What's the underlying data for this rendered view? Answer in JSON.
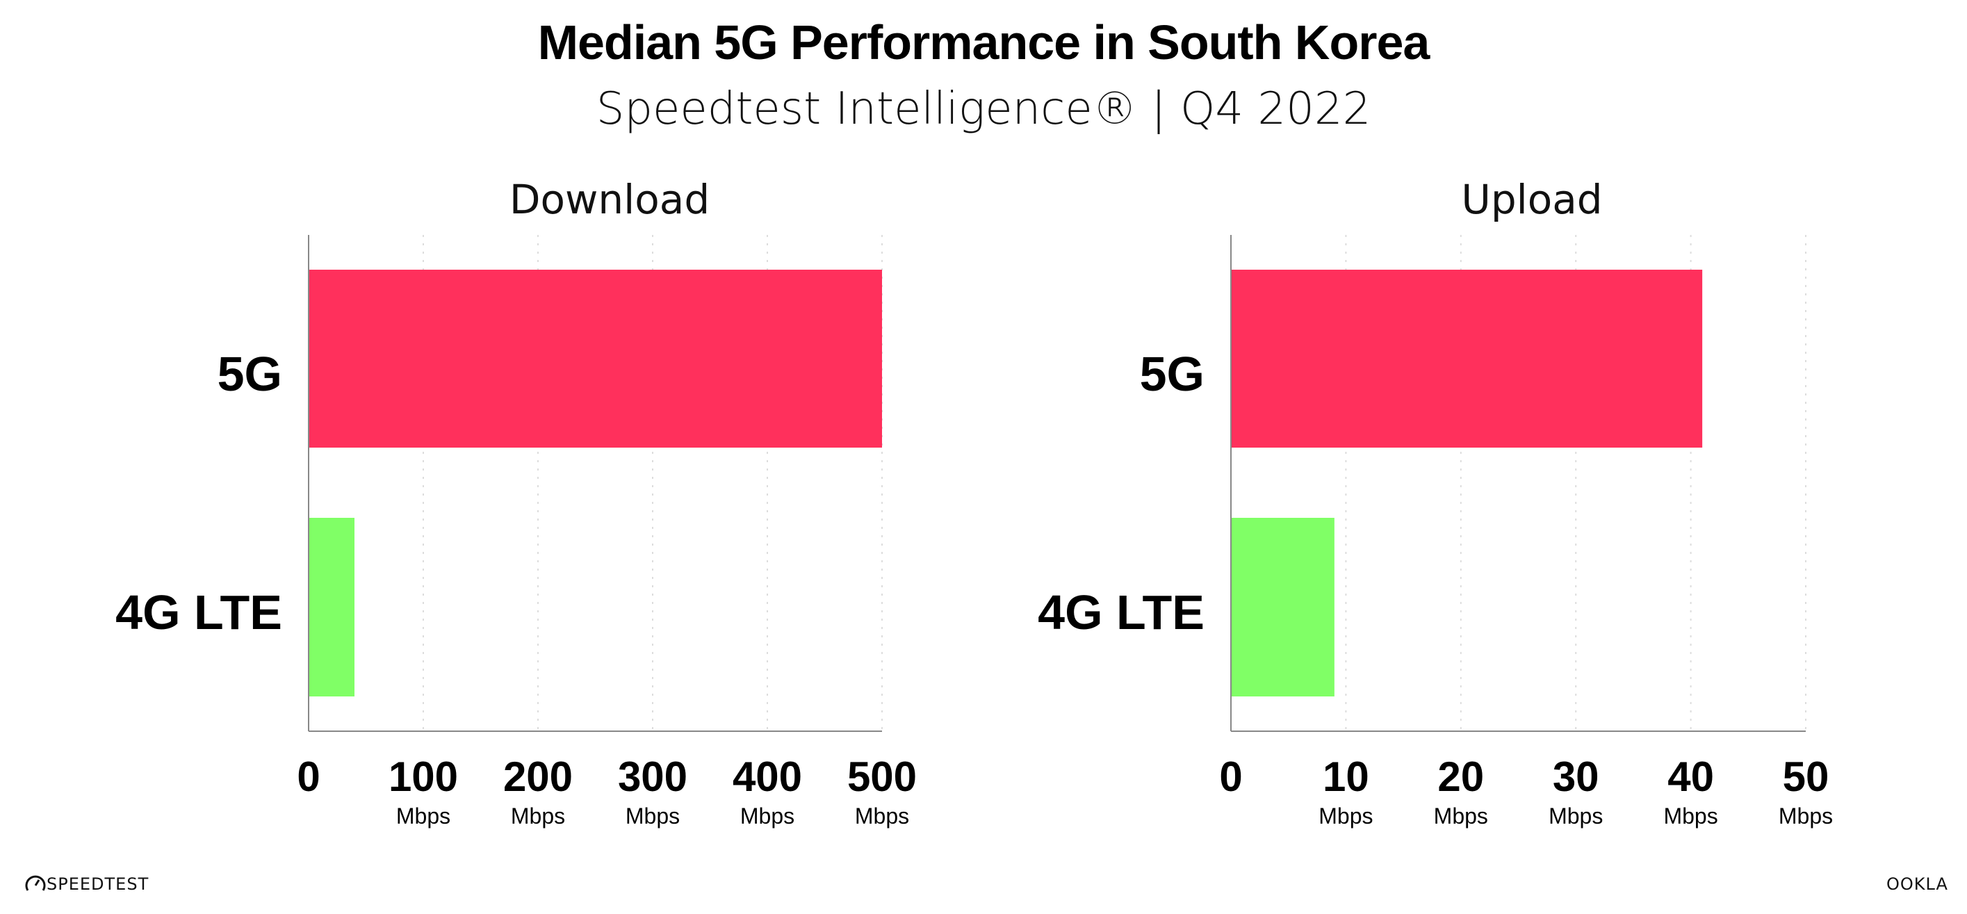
{
  "header": {
    "title": "Median 5G Performance in South Korea",
    "subtitle": "Speedtest Intelligence® | Q4 2022"
  },
  "logos": {
    "left": "SPEEDTEST",
    "right": "OOKLA"
  },
  "colors": {
    "5G": "#ff305c",
    "4G LTE": "#80ff66",
    "axis": "#888888",
    "grid": "#dddddd"
  },
  "chart_data": [
    {
      "type": "bar",
      "orientation": "horizontal",
      "title": "Download",
      "categories": [
        "5G",
        "4G LTE"
      ],
      "values": [
        500,
        40
      ],
      "xlim": [
        0,
        500
      ],
      "ticks": [
        "0",
        "100",
        "200",
        "300",
        "400",
        "500"
      ],
      "tick_values": [
        0,
        100,
        200,
        300,
        400,
        500
      ],
      "unit": "Mbps",
      "grid": true
    },
    {
      "type": "bar",
      "orientation": "horizontal",
      "title": "Upload",
      "categories": [
        "5G",
        "4G LTE"
      ],
      "values": [
        41,
        9
      ],
      "xlim": [
        0,
        50
      ],
      "ticks": [
        "0",
        "10",
        "20",
        "30",
        "40",
        "50"
      ],
      "tick_values": [
        0,
        10,
        20,
        30,
        40,
        50
      ],
      "unit": "Mbps",
      "grid": true
    }
  ]
}
